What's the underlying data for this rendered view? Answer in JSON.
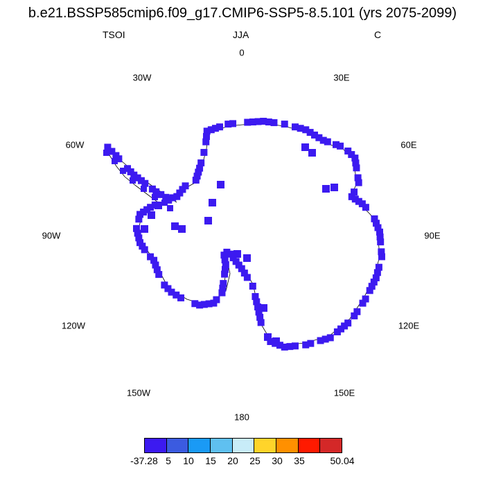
{
  "title": "b.e21.BSSP585cmip6.f09_g17.CMIP6-SSP5-8.5.101 (yrs 2075-2099)",
  "left_label": "TSOI",
  "center_label": "JJA",
  "right_label": "C",
  "lon_labels": {
    "deg0": "0",
    "e30": "30E",
    "e60": "60E",
    "e90": "90E",
    "e120": "120E",
    "e150": "150E",
    "deg180": "180",
    "w150": "150W",
    "w120": "120W",
    "w90": "90W",
    "w60": "60W",
    "w30": "30W"
  },
  "legend": {
    "colors": [
      "#3c1af0",
      "#3b5be0",
      "#1a9af5",
      "#5fc0f0",
      "#c8ecf8",
      "#ffd42a",
      "#ff9000",
      "#ff1a00",
      "#d42828"
    ],
    "labels": [
      "-37.28",
      "5",
      "10",
      "15",
      "20",
      "25",
      "30",
      "35",
      "50.04"
    ]
  },
  "field_color": "#3c1af0"
}
